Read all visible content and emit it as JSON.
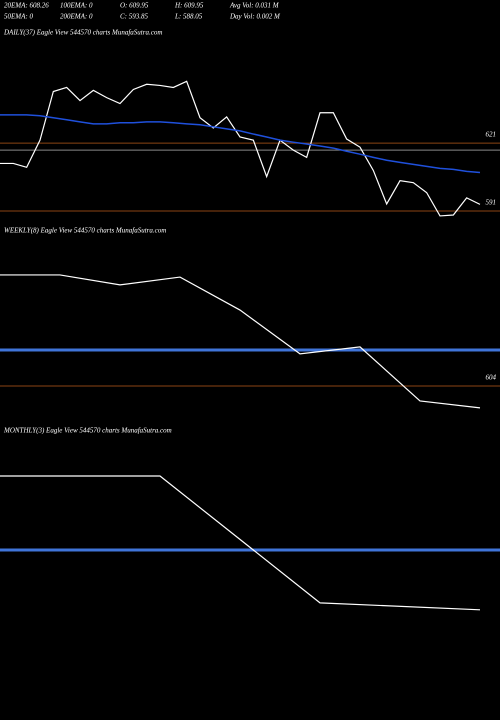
{
  "header": {
    "row1": [
      "20EMA: 608.26",
      "100EMA: 0",
      "O: 609.95",
      "H: 609.95",
      "Avg Vol: 0.031 M"
    ],
    "row2": [
      "50EMA: 0",
      "200EMA: 0",
      "C: 593.85",
      "L: 588.05",
      "Day Vol: 0.002 M"
    ]
  },
  "chart_data": [
    {
      "type": "line",
      "title": "DAILY(37) Eagle  View  544570  charts MunafaSutra.com",
      "ylim": [
        587,
        671
      ],
      "levels": [
        621,
        591
      ],
      "level_color": "#8b4513",
      "bands": [
        {
          "value": 617.9,
          "color": "#888888"
        }
      ],
      "series": [
        {
          "color": "#ffffff",
          "values": [
            612.0,
            612.0,
            610.3,
            622.3,
            643.8,
            645.6,
            639.8,
            644.3,
            641.1,
            638.5,
            644.7,
            647.0,
            646.5,
            645.6,
            648.3,
            632.2,
            627.7,
            632.6,
            623.7,
            622.3,
            606.2,
            622.3,
            617.9,
            614.7,
            634.4,
            634.4,
            622.8,
            619.2,
            608.9,
            594.1,
            604.4,
            603.5,
            599.1,
            588.8,
            589.2,
            596.8,
            593.9
          ]
        },
        {
          "color": "#1f50dc",
          "values": [
            633.5,
            633.5,
            633.5,
            633.1,
            632.2,
            631.3,
            630.4,
            629.5,
            629.5,
            630.0,
            630.0,
            630.4,
            630.4,
            630.0,
            629.5,
            629.1,
            628.2,
            627.3,
            626.4,
            625.0,
            623.7,
            622.3,
            621.4,
            620.6,
            619.7,
            618.8,
            617.4,
            616.1,
            614.7,
            613.4,
            612.5,
            611.6,
            610.7,
            609.8,
            609.4,
            608.5,
            608.0
          ]
        }
      ]
    },
    {
      "type": "line",
      "title": "WEEKLY(8) Eagle  View  544570  charts MunafaSutra.com",
      "ylim": [
        588.3,
        671.3
      ],
      "levels": [
        604
      ],
      "level_color": "#8b4513",
      "bands": [
        {
          "value": 620.6,
          "color": "#3f74d8"
        }
      ],
      "series": [
        {
          "color": "#ffffff",
          "values": [
            655.2,
            655.2,
            650.6,
            654.2,
            639.0,
            618.8,
            622.0,
            597.1,
            593.9
          ]
        }
      ]
    },
    {
      "type": "line",
      "title": "MONTHLY(3) Eagle  View  544570  charts MunafaSutra.com",
      "ylim": [
        589.2,
        672.2
      ],
      "bands": [
        {
          "value": 621.5,
          "color": "#3f74d8"
        }
      ],
      "series": [
        {
          "color": "#ffffff",
          "values": [
            655.6,
            655.6,
            597.1,
            593.9
          ]
        }
      ]
    }
  ]
}
